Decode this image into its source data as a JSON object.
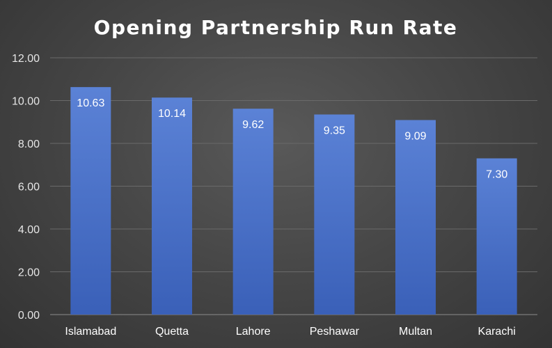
{
  "chart_data": {
    "type": "bar",
    "title": "Opening Partnership Run Rate",
    "xlabel": "",
    "ylabel": "",
    "categories": [
      "Islamabad",
      "Quetta",
      "Lahore",
      "Peshawar",
      "Multan",
      "Karachi"
    ],
    "values": [
      10.63,
      10.14,
      9.62,
      9.35,
      9.09,
      7.3
    ],
    "data_labels": [
      "10.63",
      "10.14",
      "9.62",
      "9.35",
      "9.09",
      "7.30"
    ],
    "ylim": [
      0,
      12
    ],
    "y_ticks": [
      0,
      2,
      4,
      6,
      8,
      10,
      12
    ],
    "y_tick_labels": [
      "0.00",
      "2.00",
      "4.00",
      "6.00",
      "8.00",
      "10.00",
      "12.00"
    ],
    "grid": true,
    "legend": "none",
    "colors": {
      "bar_top": "#5b82d6",
      "bar_bottom": "#3a60b8",
      "background": "#404040"
    }
  }
}
